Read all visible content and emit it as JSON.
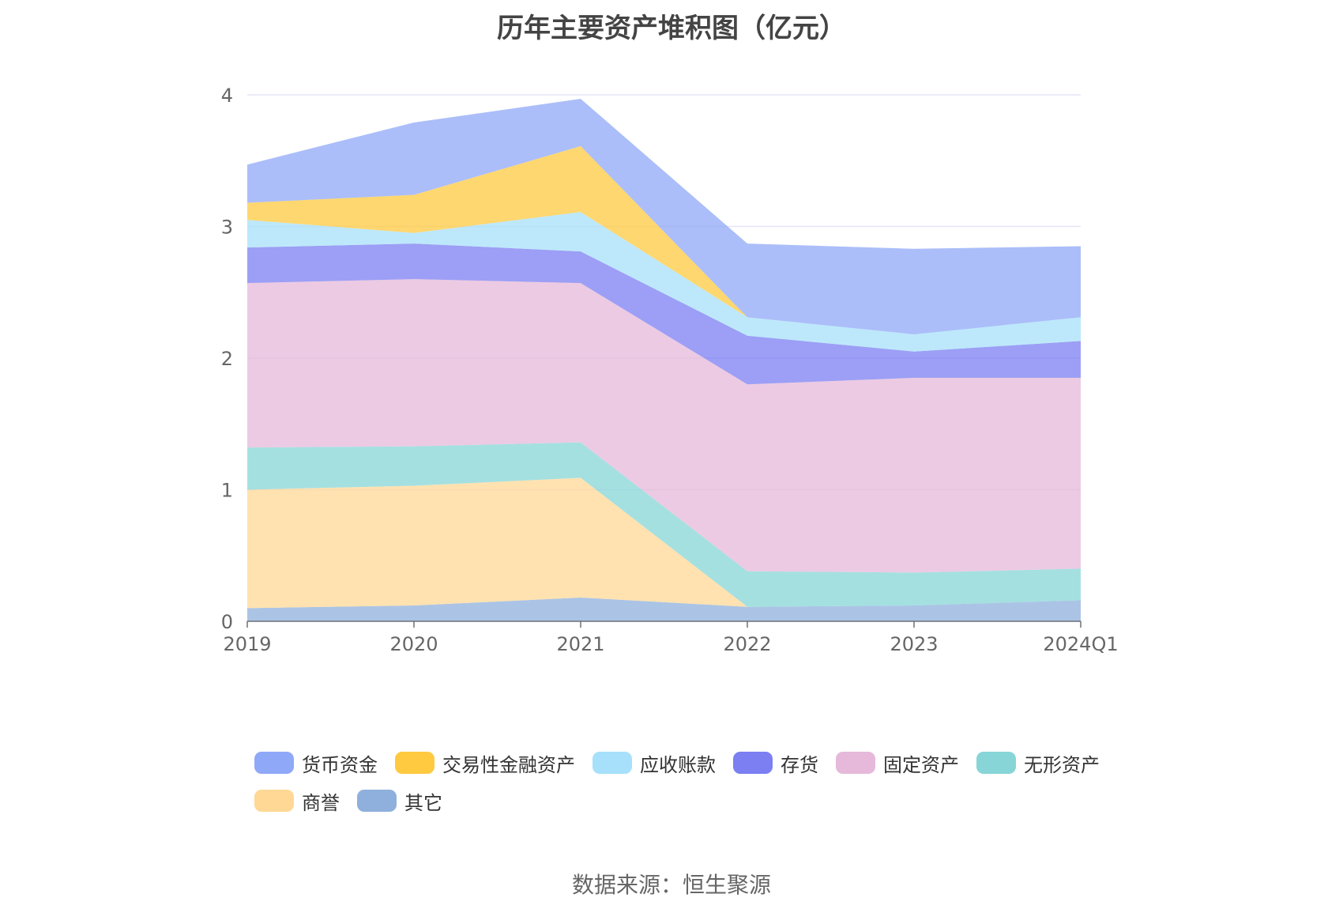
{
  "title": "历年主要资产堆积图（亿元）",
  "source": "数据来源：恒生聚源",
  "chart_data": {
    "type": "area",
    "stacked": true,
    "categories": [
      "2019",
      "2020",
      "2021",
      "2022",
      "2023",
      "2024Q1"
    ],
    "ylim": [
      0,
      4
    ],
    "yticks": [
      "0",
      "1",
      "2",
      "3",
      "4"
    ],
    "grid": true,
    "legend_position": "bottom",
    "series": [
      {
        "name": "其它",
        "color": "#8fb0dc",
        "values": [
          0.1,
          0.12,
          0.18,
          0.11,
          0.12,
          0.16
        ]
      },
      {
        "name": "商誉",
        "color": "#ffd895",
        "values": [
          0.9,
          0.91,
          0.91,
          0.0,
          0.0,
          0.0
        ]
      },
      {
        "name": "无形资产",
        "color": "#87d5d7",
        "values": [
          0.32,
          0.3,
          0.27,
          0.27,
          0.25,
          0.24
        ]
      },
      {
        "name": "固定资产",
        "color": "#e6b8d9",
        "values": [
          1.25,
          1.27,
          1.21,
          1.42,
          1.48,
          1.45
        ]
      },
      {
        "name": "存货",
        "color": "#7b7ff2",
        "values": [
          0.27,
          0.27,
          0.24,
          0.37,
          0.2,
          0.28
        ]
      },
      {
        "name": "应收账款",
        "color": "#a7e0fa",
        "values": [
          0.21,
          0.08,
          0.3,
          0.14,
          0.13,
          0.18
        ]
      },
      {
        "name": "交易性金融资产",
        "color": "#ffc940",
        "values": [
          0.13,
          0.29,
          0.5,
          0.0,
          0.0,
          0.0
        ]
      },
      {
        "name": "货币资金",
        "color": "#8fa8f7",
        "values": [
          0.29,
          0.55,
          0.36,
          0.56,
          0.65,
          0.54
        ]
      }
    ],
    "legend_order": [
      "货币资金",
      "交易性金融资产",
      "应收账款",
      "存货",
      "固定资产",
      "无形资产",
      "商誉",
      "其它"
    ]
  }
}
